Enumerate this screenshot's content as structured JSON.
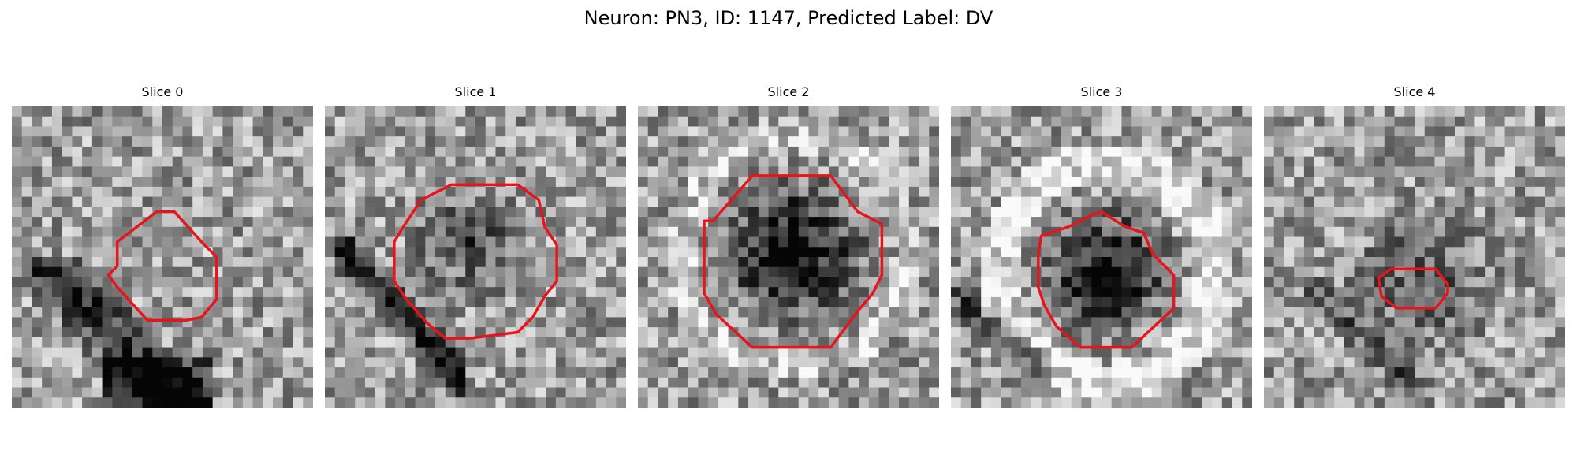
{
  "figure": {
    "title": "Neuron: PN3, ID: 1147, Predicted Label: DV"
  },
  "panels": [
    {
      "title": "Slice 0",
      "contour_color": "#e8141b",
      "dark_blob": "lower-left diagonal band",
      "contour": [
        [
          0.35,
          0.45
        ],
        [
          0.48,
          0.35
        ],
        [
          0.54,
          0.35
        ],
        [
          0.63,
          0.45
        ],
        [
          0.68,
          0.5
        ],
        [
          0.68,
          0.64
        ],
        [
          0.63,
          0.7
        ],
        [
          0.58,
          0.71
        ],
        [
          0.45,
          0.71
        ],
        [
          0.35,
          0.6
        ],
        [
          0.32,
          0.56
        ],
        [
          0.35,
          0.53
        ]
      ]
    },
    {
      "title": "Slice 1",
      "contour_color": "#e8141b",
      "dark_blob": "center blob with diagonal band lower-left",
      "contour": [
        [
          0.26,
          0.4
        ],
        [
          0.32,
          0.31
        ],
        [
          0.38,
          0.28
        ],
        [
          0.42,
          0.26
        ],
        [
          0.64,
          0.26
        ],
        [
          0.71,
          0.31
        ],
        [
          0.73,
          0.4
        ],
        [
          0.77,
          0.46
        ],
        [
          0.77,
          0.58
        ],
        [
          0.73,
          0.63
        ],
        [
          0.69,
          0.7
        ],
        [
          0.64,
          0.75
        ],
        [
          0.48,
          0.77
        ],
        [
          0.4,
          0.77
        ],
        [
          0.34,
          0.72
        ],
        [
          0.27,
          0.64
        ],
        [
          0.23,
          0.58
        ],
        [
          0.23,
          0.45
        ]
      ]
    },
    {
      "title": "Slice 2",
      "contour_color": "#e8141b",
      "dark_blob": "large dark center",
      "contour": [
        [
          0.25,
          0.38
        ],
        [
          0.38,
          0.23
        ],
        [
          0.64,
          0.23
        ],
        [
          0.73,
          0.35
        ],
        [
          0.81,
          0.39
        ],
        [
          0.81,
          0.56
        ],
        [
          0.78,
          0.62
        ],
        [
          0.73,
          0.68
        ],
        [
          0.64,
          0.8
        ],
        [
          0.38,
          0.8
        ],
        [
          0.26,
          0.69
        ],
        [
          0.22,
          0.62
        ],
        [
          0.22,
          0.38
        ]
      ]
    },
    {
      "title": "Slice 3",
      "contour_color": "#e8141b",
      "dark_blob": "dark ring center with bright halo",
      "contour": [
        [
          0.3,
          0.43
        ],
        [
          0.39,
          0.4
        ],
        [
          0.47,
          0.36
        ],
        [
          0.5,
          0.35
        ],
        [
          0.58,
          0.4
        ],
        [
          0.64,
          0.42
        ],
        [
          0.67,
          0.49
        ],
        [
          0.74,
          0.56
        ],
        [
          0.74,
          0.67
        ],
        [
          0.6,
          0.8
        ],
        [
          0.43,
          0.8
        ],
        [
          0.35,
          0.73
        ],
        [
          0.31,
          0.66
        ],
        [
          0.29,
          0.6
        ],
        [
          0.29,
          0.49
        ]
      ]
    },
    {
      "title": "Slice 4",
      "contour_color": "#e8141b",
      "dark_blob": "faint dark center",
      "contour": [
        [
          0.38,
          0.57
        ],
        [
          0.42,
          0.54
        ],
        [
          0.57,
          0.54
        ],
        [
          0.61,
          0.59
        ],
        [
          0.61,
          0.62
        ],
        [
          0.57,
          0.67
        ],
        [
          0.44,
          0.67
        ],
        [
          0.39,
          0.63
        ]
      ]
    }
  ]
}
